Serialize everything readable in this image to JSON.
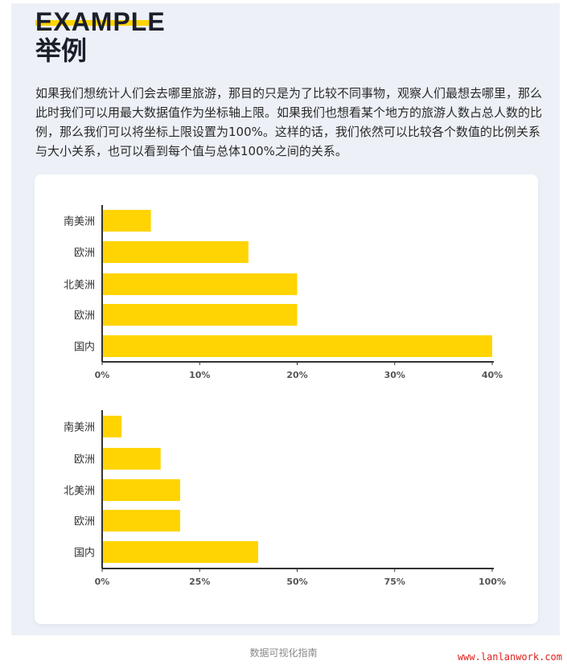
{
  "header": {
    "eyebrow": "EXAMPLE",
    "title": "举例"
  },
  "paragraph": "如果我们想统计人们会去哪里旅游，那目的只是为了比较不同事物，观察人们最想去哪里，那么此时我们可以用最大数据值作为坐标轴上限。如果我们也想看某个地方的旅游人数占总人数的比例，那么我们可以将坐标上限设置为100%。这样的话，我们依然可以比较各个数值的比例关系与大小关系，也可以看到每个值与总体100%之间的关系。",
  "footer": "数据可视化指南",
  "watermark": "www.lanlanwork.com",
  "colors": {
    "bar": "#ffd400",
    "accent": "#ffd400",
    "panel": "#edf1f7"
  },
  "chart_data": [
    {
      "type": "bar",
      "orientation": "horizontal",
      "categories": [
        "南美洲",
        "欧洲",
        "北美洲",
        "欧洲",
        "国内"
      ],
      "values": [
        5,
        15,
        20,
        20,
        40
      ],
      "xlim": [
        0,
        40
      ],
      "ticks": [
        "0%",
        "10%",
        "20%",
        "30%",
        "40%"
      ],
      "grid": false
    },
    {
      "type": "bar",
      "orientation": "horizontal",
      "categories": [
        "南美洲",
        "欧洲",
        "北美洲",
        "欧洲",
        "国内"
      ],
      "values": [
        5,
        15,
        20,
        20,
        40
      ],
      "xlim": [
        0,
        100
      ],
      "ticks": [
        "0%",
        "25%",
        "50%",
        "75%",
        "100%"
      ],
      "grid": false
    }
  ]
}
